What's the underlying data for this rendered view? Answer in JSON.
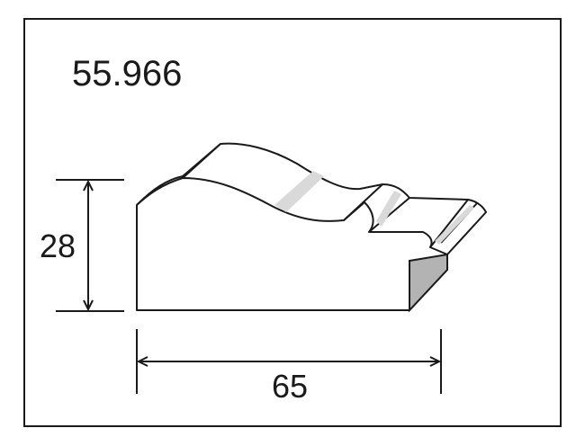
{
  "product": {
    "code": "55.966"
  },
  "dimensions": {
    "height": {
      "value": "28"
    },
    "width": {
      "value": "65"
    }
  },
  "colors": {
    "stroke": "#1a1a1a",
    "shade": "#b3b3b3",
    "highlight": "#d9d9d9"
  }
}
